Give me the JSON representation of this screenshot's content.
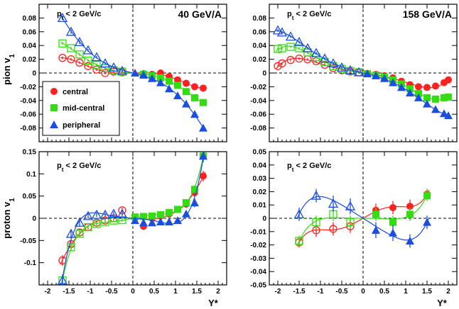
{
  "figure": {
    "xlabel": "Y*",
    "colors": {
      "central": "#ff2020",
      "mid-central": "#33dd11",
      "peripheral": "#1a4de0",
      "axis": "#000000"
    }
  },
  "legend": {
    "items": [
      {
        "key": "central",
        "label": "central",
        "marker": "circle"
      },
      {
        "key": "mid-central",
        "label": "mid-central",
        "marker": "square"
      },
      {
        "key": "peripheral",
        "label": "peripheral",
        "marker": "triangle"
      }
    ]
  },
  "chart_data": [
    {
      "type": "scatter",
      "id": "pion-40",
      "title": "40 GeV/A",
      "condition": "p_t < 2 GeV/c",
      "ylabel": "pion v_1",
      "xlim": [
        -2.2,
        2.2
      ],
      "ylim": [
        -0.1,
        0.1
      ],
      "xticks": [
        -2,
        -1.5,
        -1,
        -0.5,
        0,
        0.5,
        1,
        1.5,
        2
      ],
      "xtick_labels": [
        "-2",
        "-1.5",
        "-1",
        "-0.5",
        "0",
        "0.5",
        "1",
        "1.5",
        "2"
      ],
      "yticks": [
        -0.08,
        -0.06,
        -0.04,
        -0.02,
        0,
        0.02,
        0.04,
        0.06,
        0.08
      ],
      "ytick_labels": [
        "-0.08",
        "-0.06",
        "-0.04",
        "-0.02",
        "0",
        "0.02",
        "0.04",
        "0.06",
        "0.08"
      ],
      "show_xtick_labels": false,
      "series": [
        {
          "name": "central",
          "x": [
            0.25,
            0.45,
            0.65,
            0.85,
            1.05,
            1.25,
            1.45,
            1.65
          ],
          "y": [
            -0.001,
            -0.002,
            0.0,
            -0.005,
            -0.01,
            -0.015,
            -0.02,
            -0.022
          ],
          "yerr": [
            0.002,
            0.002,
            0.002,
            0.002,
            0.002,
            0.002,
            0.002,
            0.002
          ]
        },
        {
          "name": "mid-central",
          "x": [
            0.25,
            0.45,
            0.65,
            0.85,
            1.05,
            1.25,
            1.45,
            1.65
          ],
          "y": [
            -0.002,
            -0.004,
            -0.007,
            -0.012,
            -0.018,
            -0.027,
            -0.036,
            -0.043
          ],
          "yerr": [
            0.002,
            0.002,
            0.002,
            0.002,
            0.002,
            0.002,
            0.002,
            0.002
          ]
        },
        {
          "name": "peripheral",
          "x": [
            0.05,
            0.25,
            0.45,
            0.65,
            0.85,
            1.05,
            1.25,
            1.45,
            1.65
          ],
          "y": [
            0.0,
            -0.003,
            -0.008,
            -0.014,
            -0.023,
            -0.033,
            -0.045,
            -0.06,
            -0.08
          ],
          "yerr": [
            0.002,
            0.002,
            0.002,
            0.002,
            0.002,
            0.002,
            0.003,
            0.003,
            0.003
          ]
        }
      ],
      "reflected": true,
      "fits": [
        "central",
        "mid-central",
        "peripheral"
      ]
    },
    {
      "type": "scatter",
      "id": "pion-158",
      "title": "158 GeV/A",
      "condition": "p_t < 2 GeV/c",
      "ylabel": "",
      "xlim": [
        -2.2,
        2.2
      ],
      "ylim": [
        -0.1,
        0.1
      ],
      "xticks": [
        -2,
        -1.5,
        -1,
        -0.5,
        0,
        0.5,
        1,
        1.5,
        2
      ],
      "xtick_labels": [
        "-2",
        "-1.5",
        "-1",
        "-0.5",
        "0",
        "0.5",
        "1",
        "1.5",
        "2"
      ],
      "yticks": [
        -0.08,
        -0.06,
        -0.04,
        -0.02,
        0,
        0.02,
        0.04,
        0.06,
        0.08
      ],
      "ytick_labels": [
        "-0.08",
        "-0.06",
        "-0.04",
        "-0.02",
        "0",
        "0.02",
        "0.04",
        "0.06",
        "0.08"
      ],
      "show_xtick_labels": false,
      "series": [
        {
          "name": "central",
          "x": [
            0.1,
            0.3,
            0.5,
            0.7,
            0.9,
            1.1,
            1.3,
            1.5,
            1.7,
            1.9,
            2.0
          ],
          "y": [
            -0.001,
            -0.002,
            -0.004,
            -0.007,
            -0.012,
            -0.017,
            -0.02,
            -0.021,
            -0.019,
            -0.014,
            -0.01
          ],
          "yerr": [
            0.002,
            0.002,
            0.002,
            0.002,
            0.002,
            0.002,
            0.002,
            0.002,
            0.002,
            0.002,
            0.002
          ]
        },
        {
          "name": "mid-central",
          "x": [
            0.1,
            0.3,
            0.5,
            0.7,
            0.9,
            1.1,
            1.3,
            1.5,
            1.7,
            1.9,
            2.0
          ],
          "y": [
            -0.001,
            -0.003,
            -0.006,
            -0.01,
            -0.016,
            -0.023,
            -0.03,
            -0.036,
            -0.038,
            -0.036,
            -0.035
          ],
          "yerr": [
            0.002,
            0.002,
            0.002,
            0.002,
            0.002,
            0.002,
            0.002,
            0.002,
            0.002,
            0.002,
            0.002
          ]
        },
        {
          "name": "peripheral",
          "x": [
            0.1,
            0.3,
            0.5,
            0.7,
            0.9,
            1.1,
            1.3,
            1.5,
            1.7,
            1.9,
            2.0
          ],
          "y": [
            -0.001,
            -0.004,
            -0.008,
            -0.014,
            -0.021,
            -0.029,
            -0.036,
            -0.045,
            -0.053,
            -0.059,
            -0.062
          ],
          "yerr": [
            0.002,
            0.002,
            0.002,
            0.002,
            0.002,
            0.002,
            0.002,
            0.002,
            0.002,
            0.002,
            0.002
          ]
        }
      ],
      "reflected": true,
      "fits": [
        "central",
        "mid-central",
        "peripheral"
      ]
    },
    {
      "type": "scatter",
      "id": "proton-40",
      "title": "",
      "condition": "p_t < 2 GeV/c",
      "ylabel": "proton v_1",
      "xlim": [
        -2.2,
        2.2
      ],
      "ylim": [
        -0.15,
        0.15
      ],
      "xticks": [
        -2,
        -1.5,
        -1,
        -0.5,
        0,
        0.5,
        1,
        1.5,
        2
      ],
      "xtick_labels": [
        "-2",
        "-1.5",
        "-1",
        "-0.5",
        "0",
        "0.5",
        "1",
        "1.5",
        "2"
      ],
      "yticks": [
        -0.1,
        -0.05,
        0,
        0.05,
        0.1,
        0.15
      ],
      "ytick_labels": [
        "-0.1",
        "-0.05",
        "0",
        "0.05",
        "0.1",
        "0.15"
      ],
      "show_xtick_labels": true,
      "series": [
        {
          "name": "central",
          "x": [
            0.25,
            0.45,
            0.65,
            0.85,
            1.05,
            1.25,
            1.45,
            1.65
          ],
          "y": [
            -0.018,
            0.0,
            0.005,
            0.01,
            0.02,
            0.032,
            0.058,
            0.095
          ],
          "yerr": [
            0.006,
            0.005,
            0.005,
            0.005,
            0.006,
            0.007,
            0.009,
            0.012
          ]
        },
        {
          "name": "mid-central",
          "x": [
            0.05,
            0.25,
            0.45,
            0.65,
            0.85,
            1.05,
            1.25,
            1.45,
            1.65
          ],
          "y": [
            0.003,
            0.004,
            0.005,
            0.008,
            0.013,
            0.02,
            0.035,
            0.065,
            0.14
          ],
          "yerr": [
            0.004,
            0.004,
            0.004,
            0.004,
            0.005,
            0.006,
            0.007,
            0.009,
            0.012
          ]
        },
        {
          "name": "peripheral",
          "x": [
            0.05,
            0.25,
            0.45,
            0.65,
            0.85,
            1.05,
            1.25,
            1.45,
            1.65
          ],
          "y": [
            -0.005,
            -0.01,
            -0.01,
            -0.008,
            -0.008,
            -0.005,
            0.01,
            0.035,
            0.14
          ],
          "yerr": [
            0.005,
            0.005,
            0.005,
            0.005,
            0.005,
            0.006,
            0.008,
            0.01,
            0.014
          ]
        }
      ],
      "reflected": true,
      "fits": [
        "central",
        "mid-central",
        "peripheral"
      ]
    },
    {
      "type": "scatter",
      "id": "proton-158",
      "title": "",
      "condition": "p_t < 2 GeV/c",
      "ylabel": "",
      "xlim": [
        -2.2,
        2.2
      ],
      "ylim": [
        -0.05,
        0.05
      ],
      "xticks": [
        -2,
        -1.5,
        -1,
        -0.5,
        0,
        0.5,
        1,
        1.5,
        2
      ],
      "xtick_labels": [
        "-2",
        "-1.5",
        "-1",
        "-0.5",
        "0",
        "0.5",
        "1",
        "1.5",
        "2"
      ],
      "yticks": [
        -0.05,
        -0.04,
        -0.03,
        -0.02,
        -0.01,
        0,
        0.01,
        0.02,
        0.03,
        0.04,
        0.05
      ],
      "ytick_labels": [
        "-0.05",
        "-0.04",
        "-0.03",
        "-0.02",
        "-0.01",
        "0",
        "0.01",
        "0.02",
        "0.03",
        "0.04",
        "0.05"
      ],
      "show_xtick_labels": true,
      "series": [
        {
          "name": "central",
          "x": [
            0.3,
            0.7,
            1.1,
            1.5
          ],
          "y": [
            0.006,
            0.008,
            0.009,
            0.018
          ],
          "yerr": [
            0.005,
            0.005,
            0.005,
            0.004
          ]
        },
        {
          "name": "mid-central",
          "x": [
            0.3,
            0.7,
            1.1,
            1.5
          ],
          "y": [
            0.003,
            -0.003,
            0.003,
            0.017
          ],
          "yerr": [
            0.005,
            0.005,
            0.005,
            0.004
          ]
        },
        {
          "name": "peripheral",
          "x": [
            0.3,
            0.7,
            1.1,
            1.5
          ],
          "y": [
            -0.009,
            -0.011,
            -0.017,
            -0.003
          ],
          "yerr": [
            0.006,
            0.006,
            0.005,
            0.005
          ]
        }
      ],
      "reflected": true,
      "fits": [
        "central",
        "mid-central",
        "peripheral"
      ]
    }
  ]
}
